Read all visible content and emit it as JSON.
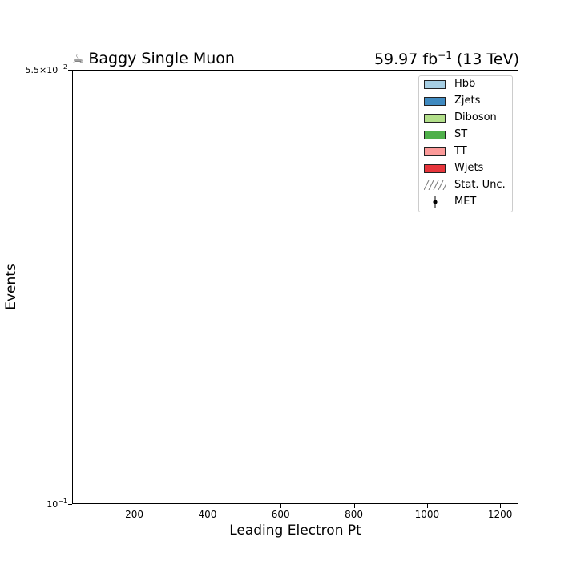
{
  "chart_data": {
    "type": "bar",
    "stacked": true,
    "title_left": "Baggy Single Muon",
    "title_right_lumi": "59.97 fb",
    "title_right_exp": "−1",
    "title_right_energy": "(13 TeV)",
    "xlabel": "Leading Electron Pt",
    "ylabel": "Events",
    "xlim": [
      30,
      1250
    ],
    "xticks": [
      200,
      400,
      600,
      800,
      1000,
      1200
    ],
    "yscale": "log",
    "yticks": [
      {
        "base": "5.5×10",
        "exp": "−2"
      },
      {
        "base": "10",
        "exp": "−1"
      }
    ],
    "legend_position": "top-right",
    "series": [
      {
        "name": "Hbb",
        "color": "#a6cee3",
        "values": []
      },
      {
        "name": "Zjets",
        "color": "#3f8ac0",
        "values": []
      },
      {
        "name": "Diboson",
        "color": "#b2df8a",
        "values": []
      },
      {
        "name": "ST",
        "color": "#4fb04a",
        "values": []
      },
      {
        "name": "TT",
        "color": "#fb9a99",
        "values": []
      },
      {
        "name": "Wjets",
        "color": "#e6353b",
        "values": []
      }
    ],
    "uncertainty_label": "Stat. Unc.",
    "data_label": "MET",
    "data_values": []
  }
}
